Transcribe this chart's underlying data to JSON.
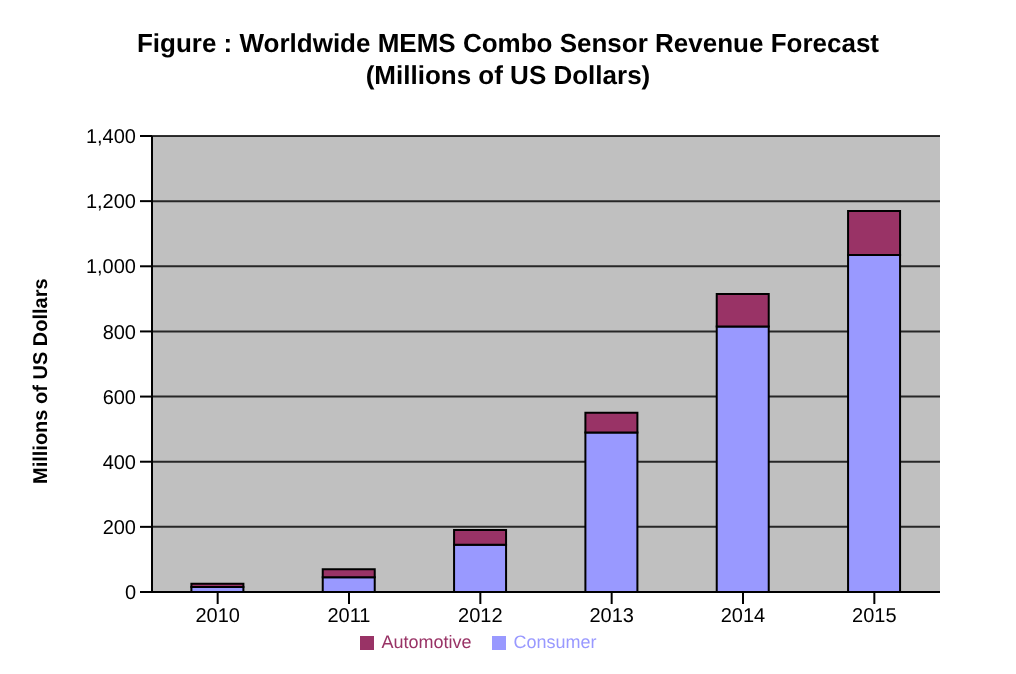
{
  "chart_data": {
    "type": "bar",
    "title": "Figure : Worldwide MEMS Combo Sensor Revenue Forecast",
    "subtitle": "(Millions of US Dollars)",
    "ylabel": "Millions of US Dollars",
    "categories": [
      "2010",
      "2011",
      "2012",
      "2013",
      "2014",
      "2015"
    ],
    "series": [
      {
        "name": "Consumer",
        "color": "#9999ff",
        "values": [
          15,
          45,
          145,
          490,
          815,
          1035
        ]
      },
      {
        "name": "Automotive",
        "color": "#993366",
        "values": [
          10,
          25,
          45,
          60,
          100,
          135
        ]
      }
    ],
    "stacked": true,
    "ylim": [
      0,
      1400
    ],
    "yticks": [
      {
        "value": 0,
        "label": "0"
      },
      {
        "value": 200,
        "label": "200"
      },
      {
        "value": 400,
        "label": "400"
      },
      {
        "value": 600,
        "label": "600"
      },
      {
        "value": 800,
        "label": "800"
      },
      {
        "value": 1000,
        "label": "1,000"
      },
      {
        "value": 1200,
        "label": "1,200"
      },
      {
        "value": 1400,
        "label": "1,400"
      }
    ],
    "grid": "y",
    "legend": "bottom"
  }
}
